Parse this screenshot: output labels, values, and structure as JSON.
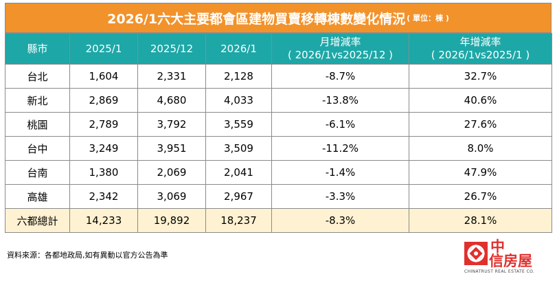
{
  "title": {
    "main": "2026/1六大主要都會區建物買賣移轉棟數變化情況",
    "unit": "( 單位：棟 )"
  },
  "table": {
    "headers": {
      "region": "縣市",
      "col1": "2025/1",
      "col2": "2025/12",
      "col3": "2026/1",
      "mom_line1": "月增減率",
      "mom_line2": "( 2026/1vs2025/12 )",
      "yoy_line1": "年增減率",
      "yoy_line2": "( 2026/1vs2025/1 )"
    },
    "rows": [
      {
        "region": "台北",
        "v1": "1,604",
        "v2": "2,331",
        "v3": "2,128",
        "mom": "-8.7%",
        "yoy": "32.7%"
      },
      {
        "region": "新北",
        "v1": "2,869",
        "v2": "4,680",
        "v3": "4,033",
        "mom": "-13.8%",
        "yoy": "40.6%"
      },
      {
        "region": "桃園",
        "v1": "2,789",
        "v2": "3,792",
        "v3": "3,559",
        "mom": "-6.1%",
        "yoy": "27.6%"
      },
      {
        "region": "台中",
        "v1": "3,249",
        "v2": "3,951",
        "v3": "3,509",
        "mom": "-11.2%",
        "yoy": "8.0%"
      },
      {
        "region": "台南",
        "v1": "1,380",
        "v2": "2,069",
        "v3": "2,041",
        "mom": "-1.4%",
        "yoy": "47.9%"
      },
      {
        "region": "高雄",
        "v1": "2,342",
        "v2": "3,069",
        "v3": "2,967",
        "mom": "-3.3%",
        "yoy": "26.7%"
      },
      {
        "region": "六都總計",
        "v1": "14,233",
        "v2": "19,892",
        "v3": "18,237",
        "mom": "-8.3%",
        "yoy": "28.1%"
      }
    ]
  },
  "footnote": "資料來源：各都地政局,如有異動以官方公告為準",
  "logo": {
    "cn_line1": "中",
    "cn_line2": "信房屋",
    "en": "CHINATRUST REAL ESTATE CO."
  },
  "colors": {
    "title_bg": "#f2922b",
    "header_bg": "#1ea7a7",
    "total_row_bg": "#fff2d2",
    "negative": "#2aa830",
    "positive": "#e0302e"
  }
}
